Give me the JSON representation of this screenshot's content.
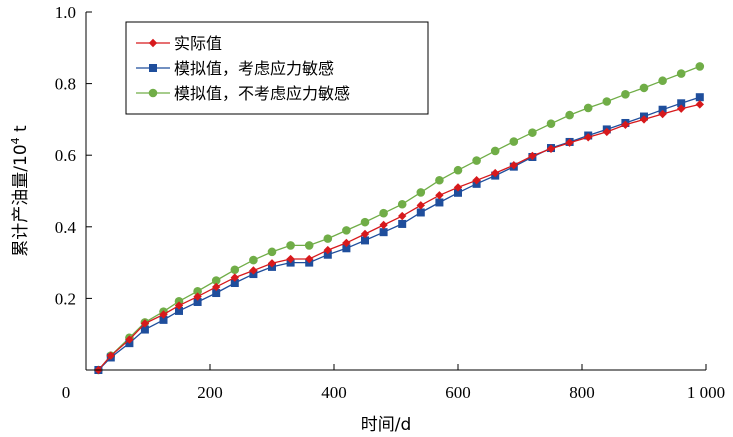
{
  "chart_data": {
    "type": "line",
    "xlabel": "时间/d",
    "ylabel": "累计产油量/10",
    "ylabel_sup": "4",
    "ylabel_unit": " t",
    "xlim": [
      0,
      1000
    ],
    "ylim": [
      0,
      1.0
    ],
    "xticks": [
      0,
      200,
      400,
      600,
      800,
      1000
    ],
    "xtick_labels": [
      "0",
      "200",
      "400",
      "600",
      "800",
      "1 000"
    ],
    "yticks": [
      0.2,
      0.4,
      0.6,
      0.8,
      1.0
    ],
    "ytick_labels": [
      "0.2",
      "0.4",
      "0.6",
      "0.8",
      "1.0"
    ],
    "grid": false,
    "legend": "top-left",
    "series": [
      {
        "name": "实际值",
        "color": "#d7191c",
        "marker": "diamond",
        "x": [
          20,
          40,
          70,
          95,
          125,
          150,
          180,
          210,
          240,
          270,
          300,
          330,
          360,
          390,
          420,
          450,
          480,
          510,
          540,
          570,
          600,
          630,
          660,
          690,
          720,
          750,
          780,
          810,
          840,
          870,
          900,
          930,
          960,
          990
        ],
        "y": [
          0.0,
          0.04,
          0.085,
          0.13,
          0.155,
          0.18,
          0.205,
          0.232,
          0.258,
          0.278,
          0.298,
          0.31,
          0.31,
          0.335,
          0.355,
          0.38,
          0.405,
          0.43,
          0.46,
          0.488,
          0.51,
          0.53,
          0.55,
          0.572,
          0.598,
          0.618,
          0.635,
          0.65,
          0.665,
          0.685,
          0.7,
          0.715,
          0.73,
          0.742
        ]
      },
      {
        "name": "模拟值，考虑应力敏感",
        "color": "#1f4e9c",
        "marker": "square",
        "x": [
          20,
          40,
          70,
          95,
          125,
          150,
          180,
          210,
          240,
          270,
          300,
          330,
          360,
          390,
          420,
          450,
          480,
          510,
          540,
          570,
          600,
          630,
          660,
          690,
          720,
          750,
          780,
          810,
          840,
          870,
          900,
          930,
          960,
          990
        ],
        "y": [
          0.0,
          0.035,
          0.075,
          0.113,
          0.14,
          0.165,
          0.19,
          0.215,
          0.243,
          0.268,
          0.288,
          0.3,
          0.3,
          0.322,
          0.34,
          0.362,
          0.385,
          0.408,
          0.44,
          0.468,
          0.495,
          0.52,
          0.543,
          0.568,
          0.595,
          0.62,
          0.637,
          0.655,
          0.672,
          0.69,
          0.708,
          0.727,
          0.745,
          0.762
        ]
      },
      {
        "name": "模拟值，不考虑应力敏感",
        "color": "#70ad47",
        "marker": "circle",
        "x": [
          20,
          40,
          70,
          95,
          125,
          150,
          180,
          210,
          240,
          270,
          300,
          330,
          360,
          390,
          420,
          450,
          480,
          510,
          540,
          570,
          600,
          630,
          660,
          690,
          720,
          750,
          780,
          810,
          840,
          870,
          900,
          930,
          960,
          990
        ],
        "y": [
          0.0,
          0.04,
          0.09,
          0.133,
          0.163,
          0.192,
          0.22,
          0.25,
          0.28,
          0.307,
          0.33,
          0.348,
          0.348,
          0.367,
          0.39,
          0.413,
          0.438,
          0.463,
          0.496,
          0.53,
          0.558,
          0.585,
          0.612,
          0.638,
          0.663,
          0.688,
          0.712,
          0.732,
          0.75,
          0.77,
          0.788,
          0.808,
          0.828,
          0.848
        ]
      }
    ]
  }
}
